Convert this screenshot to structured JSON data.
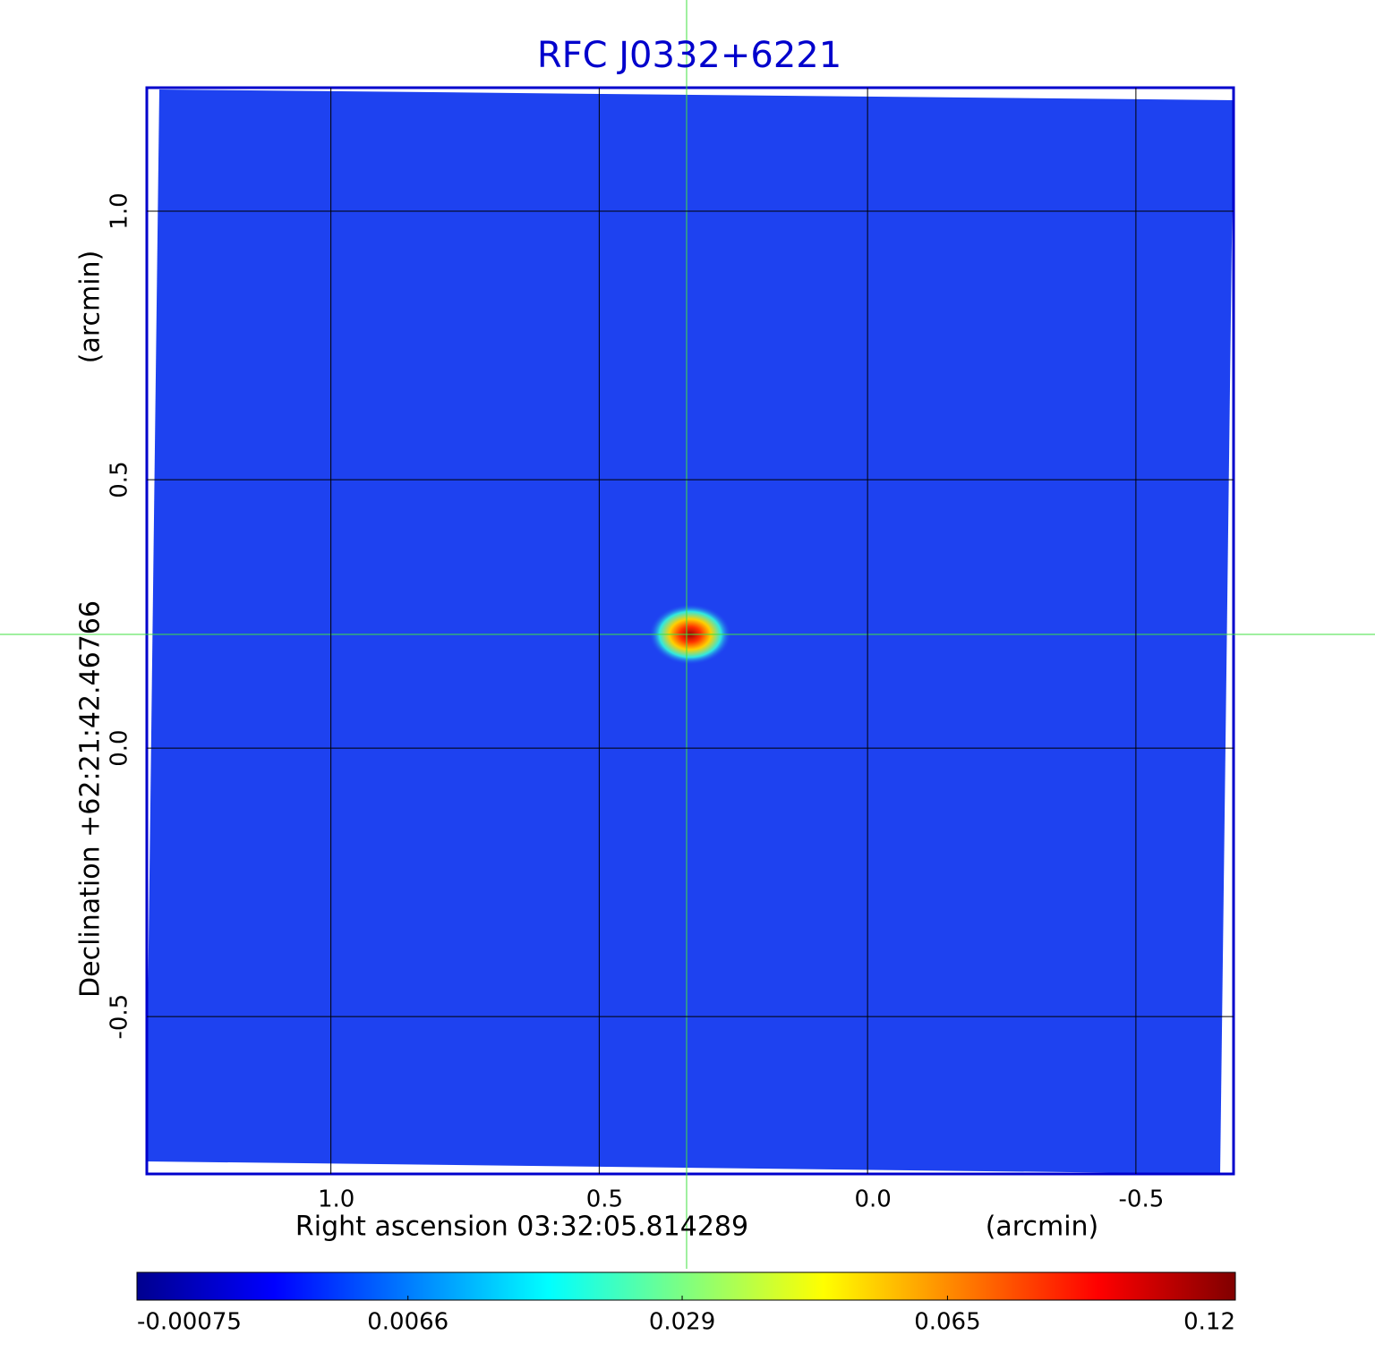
{
  "chart_data": {
    "type": "image",
    "title": "RFC J0332+6221",
    "xlabel": "Right ascension  03:32:05.814289",
    "xunit": "(arcmin)",
    "ylabel": "Declination  +62:21:42.46766",
    "yunit": "(arcmin)",
    "xlim": [
      1.343,
      -0.682
    ],
    "ylim": [
      -0.793,
      1.23
    ],
    "xticks": [
      {
        "value": 1.0,
        "label": "1.0"
      },
      0.5,
      {
        "value": 0.0,
        "label": "0.0"
      },
      -0.5
    ],
    "yticks": [
      {
        "value": 1.0,
        "label": "1.0"
      },
      0.5,
      {
        "value": 0.0,
        "label": "0.0"
      },
      -0.5
    ],
    "grid": true,
    "clim": [
      -0.00075,
      0.12
    ],
    "cscale": "sqrt",
    "cticks": [
      -0.00075,
      0.0066,
      0.029,
      0.065,
      0.12
    ]
  }
}
